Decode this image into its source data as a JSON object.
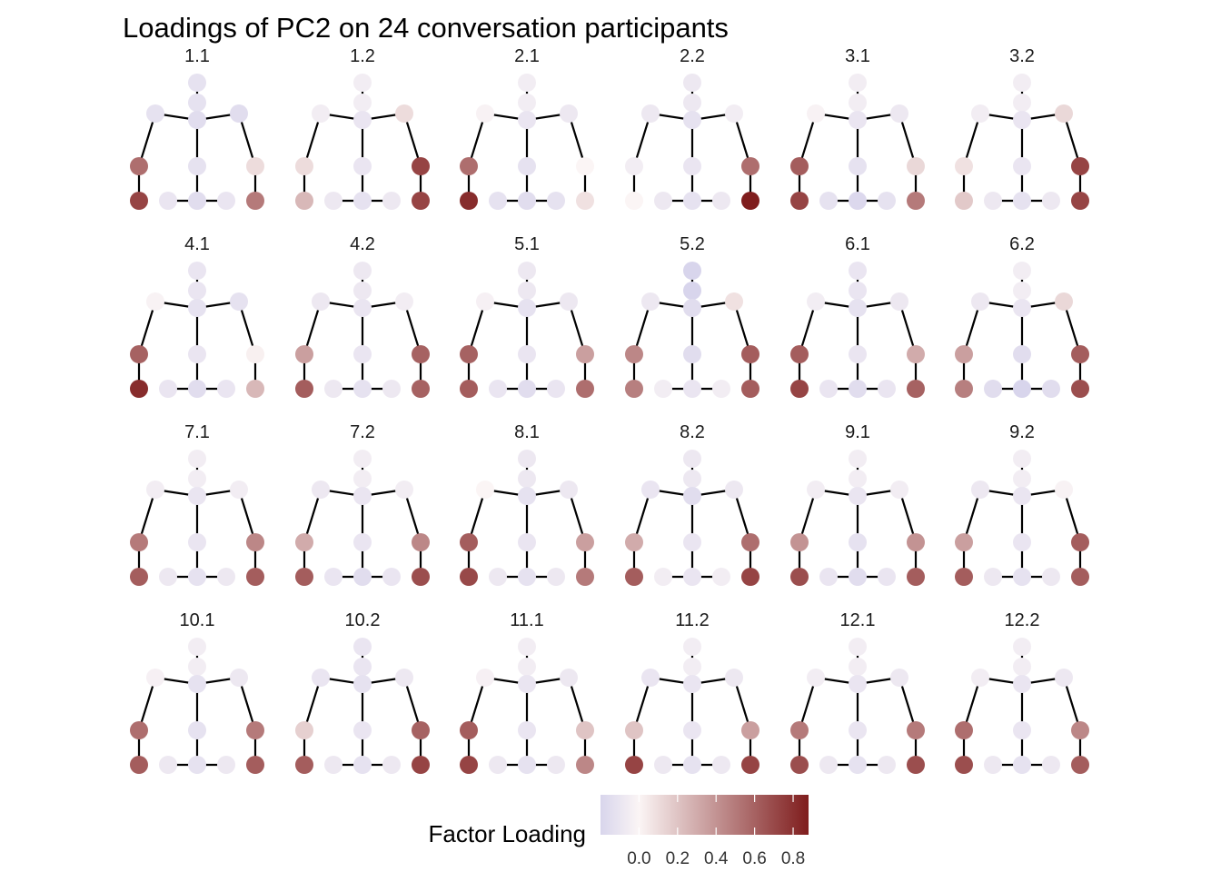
{
  "title": "Loadings of PC2 on 24 conversation participants",
  "legend": {
    "title": "Factor Loading",
    "ticks": [
      0.0,
      0.2,
      0.4,
      0.6,
      0.8
    ],
    "tick_labels": [
      "0.0",
      "0.2",
      "0.4",
      "0.6",
      "0.8"
    ],
    "range": [
      -0.2,
      0.88
    ],
    "colors": {
      "low": "#d8d5ec",
      "mid": "#fbf5f5",
      "high": "#7f1d1d"
    }
  },
  "chart_data": {
    "type": "facet-skeleton-points",
    "title": "Loadings of PC2 on 24 conversation participants",
    "facet_columns": 6,
    "joints": [
      "head",
      "neck",
      "chest",
      "shoulder_l",
      "shoulder_r",
      "hand_l",
      "hand_r",
      "spine",
      "foot_l",
      "knee_l",
      "hip",
      "knee_r",
      "foot_r"
    ],
    "bones": [
      [
        "head",
        "neck"
      ],
      [
        "neck",
        "chest"
      ],
      [
        "chest",
        "shoulder_l"
      ],
      [
        "chest",
        "shoulder_r"
      ],
      [
        "shoulder_l",
        "hand_l"
      ],
      [
        "shoulder_r",
        "hand_r"
      ],
      [
        "chest",
        "spine"
      ],
      [
        "spine",
        "hip"
      ],
      [
        "hand_l",
        "foot_l"
      ],
      [
        "hand_r",
        "foot_r"
      ],
      [
        "knee_l",
        "hip"
      ],
      [
        "hip",
        "knee_r"
      ]
    ],
    "participants": [
      {
        "label": "1.1",
        "values": [
          -0.12,
          -0.12,
          -0.15,
          -0.12,
          -0.15,
          0.55,
          0.1,
          -0.12,
          0.72,
          -0.1,
          -0.15,
          -0.1,
          0.5
        ]
      },
      {
        "label": "1.2",
        "values": [
          -0.05,
          -0.05,
          -0.1,
          -0.05,
          0.1,
          0.1,
          0.72,
          -0.1,
          0.25,
          -0.08,
          -0.12,
          -0.08,
          0.72
        ]
      },
      {
        "label": "2.1",
        "values": [
          -0.05,
          -0.05,
          -0.1,
          -0.02,
          -0.08,
          0.55,
          0.0,
          -0.12,
          0.82,
          -0.12,
          -0.15,
          -0.12,
          0.08
        ]
      },
      {
        "label": "2.2",
        "values": [
          -0.08,
          -0.08,
          -0.12,
          -0.08,
          -0.05,
          -0.05,
          0.55,
          -0.1,
          0.0,
          -0.08,
          -0.12,
          -0.08,
          0.88
        ]
      },
      {
        "label": "3.1",
        "values": [
          -0.05,
          -0.05,
          -0.1,
          -0.02,
          -0.08,
          0.62,
          0.12,
          -0.12,
          0.72,
          -0.12,
          -0.18,
          -0.12,
          0.5
        ]
      },
      {
        "label": "3.2",
        "values": [
          -0.05,
          -0.05,
          -0.1,
          -0.05,
          0.12,
          0.08,
          0.72,
          -0.1,
          0.18,
          -0.08,
          -0.12,
          -0.08,
          0.72
        ]
      },
      {
        "label": "4.1",
        "values": [
          -0.1,
          -0.1,
          -0.12,
          -0.02,
          -0.12,
          0.6,
          0.02,
          -0.1,
          0.82,
          -0.1,
          -0.15,
          -0.1,
          0.25
        ]
      },
      {
        "label": "4.2",
        "values": [
          -0.08,
          -0.08,
          -0.1,
          -0.08,
          -0.05,
          0.35,
          0.6,
          -0.1,
          0.62,
          -0.08,
          -0.12,
          -0.08,
          0.6
        ]
      },
      {
        "label": "5.1",
        "values": [
          -0.08,
          -0.08,
          -0.12,
          -0.03,
          -0.08,
          0.6,
          0.35,
          -0.1,
          0.62,
          -0.1,
          -0.15,
          -0.1,
          0.55
        ]
      },
      {
        "label": "5.2",
        "values": [
          -0.2,
          -0.2,
          -0.15,
          -0.08,
          0.08,
          0.45,
          0.62,
          -0.15,
          0.48,
          -0.05,
          -0.1,
          -0.05,
          0.62
        ]
      },
      {
        "label": "6.1",
        "values": [
          -0.1,
          -0.1,
          -0.12,
          -0.05,
          -0.08,
          0.62,
          0.3,
          -0.1,
          0.72,
          -0.1,
          -0.15,
          -0.1,
          0.6
        ]
      },
      {
        "label": "6.2",
        "values": [
          -0.05,
          -0.05,
          -0.1,
          -0.08,
          0.12,
          0.35,
          0.62,
          -0.15,
          0.48,
          -0.15,
          -0.2,
          -0.15,
          0.68
        ]
      },
      {
        "label": "7.1",
        "values": [
          -0.05,
          -0.05,
          -0.1,
          -0.05,
          -0.05,
          0.5,
          0.45,
          -0.1,
          0.62,
          -0.08,
          -0.12,
          -0.08,
          0.62
        ]
      },
      {
        "label": "7.2",
        "values": [
          -0.05,
          -0.05,
          -0.1,
          -0.08,
          -0.05,
          0.3,
          0.45,
          -0.1,
          0.62,
          -0.1,
          -0.15,
          -0.1,
          0.68
        ]
      },
      {
        "label": "8.1",
        "values": [
          -0.08,
          -0.08,
          -0.12,
          0.0,
          -0.08,
          0.62,
          0.35,
          -0.1,
          0.7,
          -0.08,
          -0.12,
          -0.08,
          0.5
        ]
      },
      {
        "label": "8.2",
        "values": [
          -0.08,
          -0.08,
          -0.15,
          -0.1,
          -0.08,
          0.3,
          0.55,
          -0.1,
          0.62,
          -0.05,
          -0.1,
          -0.05,
          0.72
        ]
      },
      {
        "label": "9.1",
        "values": [
          -0.05,
          -0.05,
          -0.1,
          -0.05,
          -0.05,
          0.4,
          0.4,
          -0.12,
          0.68,
          -0.1,
          -0.15,
          -0.1,
          0.62
        ]
      },
      {
        "label": "9.2",
        "values": [
          -0.05,
          -0.05,
          -0.1,
          -0.08,
          -0.02,
          0.35,
          0.62,
          -0.1,
          0.62,
          -0.08,
          -0.12,
          -0.08,
          0.62
        ]
      },
      {
        "label": "10.1",
        "values": [
          -0.05,
          -0.05,
          -0.12,
          -0.03,
          -0.08,
          0.55,
          0.5,
          -0.12,
          0.62,
          -0.08,
          -0.12,
          -0.08,
          0.62
        ]
      },
      {
        "label": "10.2",
        "values": [
          -0.1,
          -0.1,
          -0.12,
          -0.1,
          -0.08,
          0.15,
          0.6,
          -0.1,
          0.62,
          -0.08,
          -0.12,
          -0.08,
          0.72
        ]
      },
      {
        "label": "11.1",
        "values": [
          -0.05,
          -0.05,
          -0.1,
          -0.03,
          -0.08,
          0.62,
          0.2,
          -0.1,
          0.72,
          -0.08,
          -0.12,
          -0.08,
          0.45
        ]
      },
      {
        "label": "11.2",
        "values": [
          -0.05,
          -0.05,
          -0.1,
          -0.1,
          -0.08,
          0.2,
          0.35,
          -0.1,
          0.72,
          -0.08,
          -0.12,
          -0.08,
          0.72
        ]
      },
      {
        "label": "12.1",
        "values": [
          -0.05,
          -0.05,
          -0.1,
          -0.05,
          -0.08,
          0.5,
          0.5,
          -0.1,
          0.68,
          -0.08,
          -0.12,
          -0.08,
          0.68
        ]
      },
      {
        "label": "12.2",
        "values": [
          -0.05,
          -0.05,
          -0.1,
          -0.05,
          -0.08,
          0.55,
          0.45,
          -0.1,
          0.68,
          -0.08,
          -0.12,
          -0.08,
          0.62
        ]
      }
    ]
  }
}
